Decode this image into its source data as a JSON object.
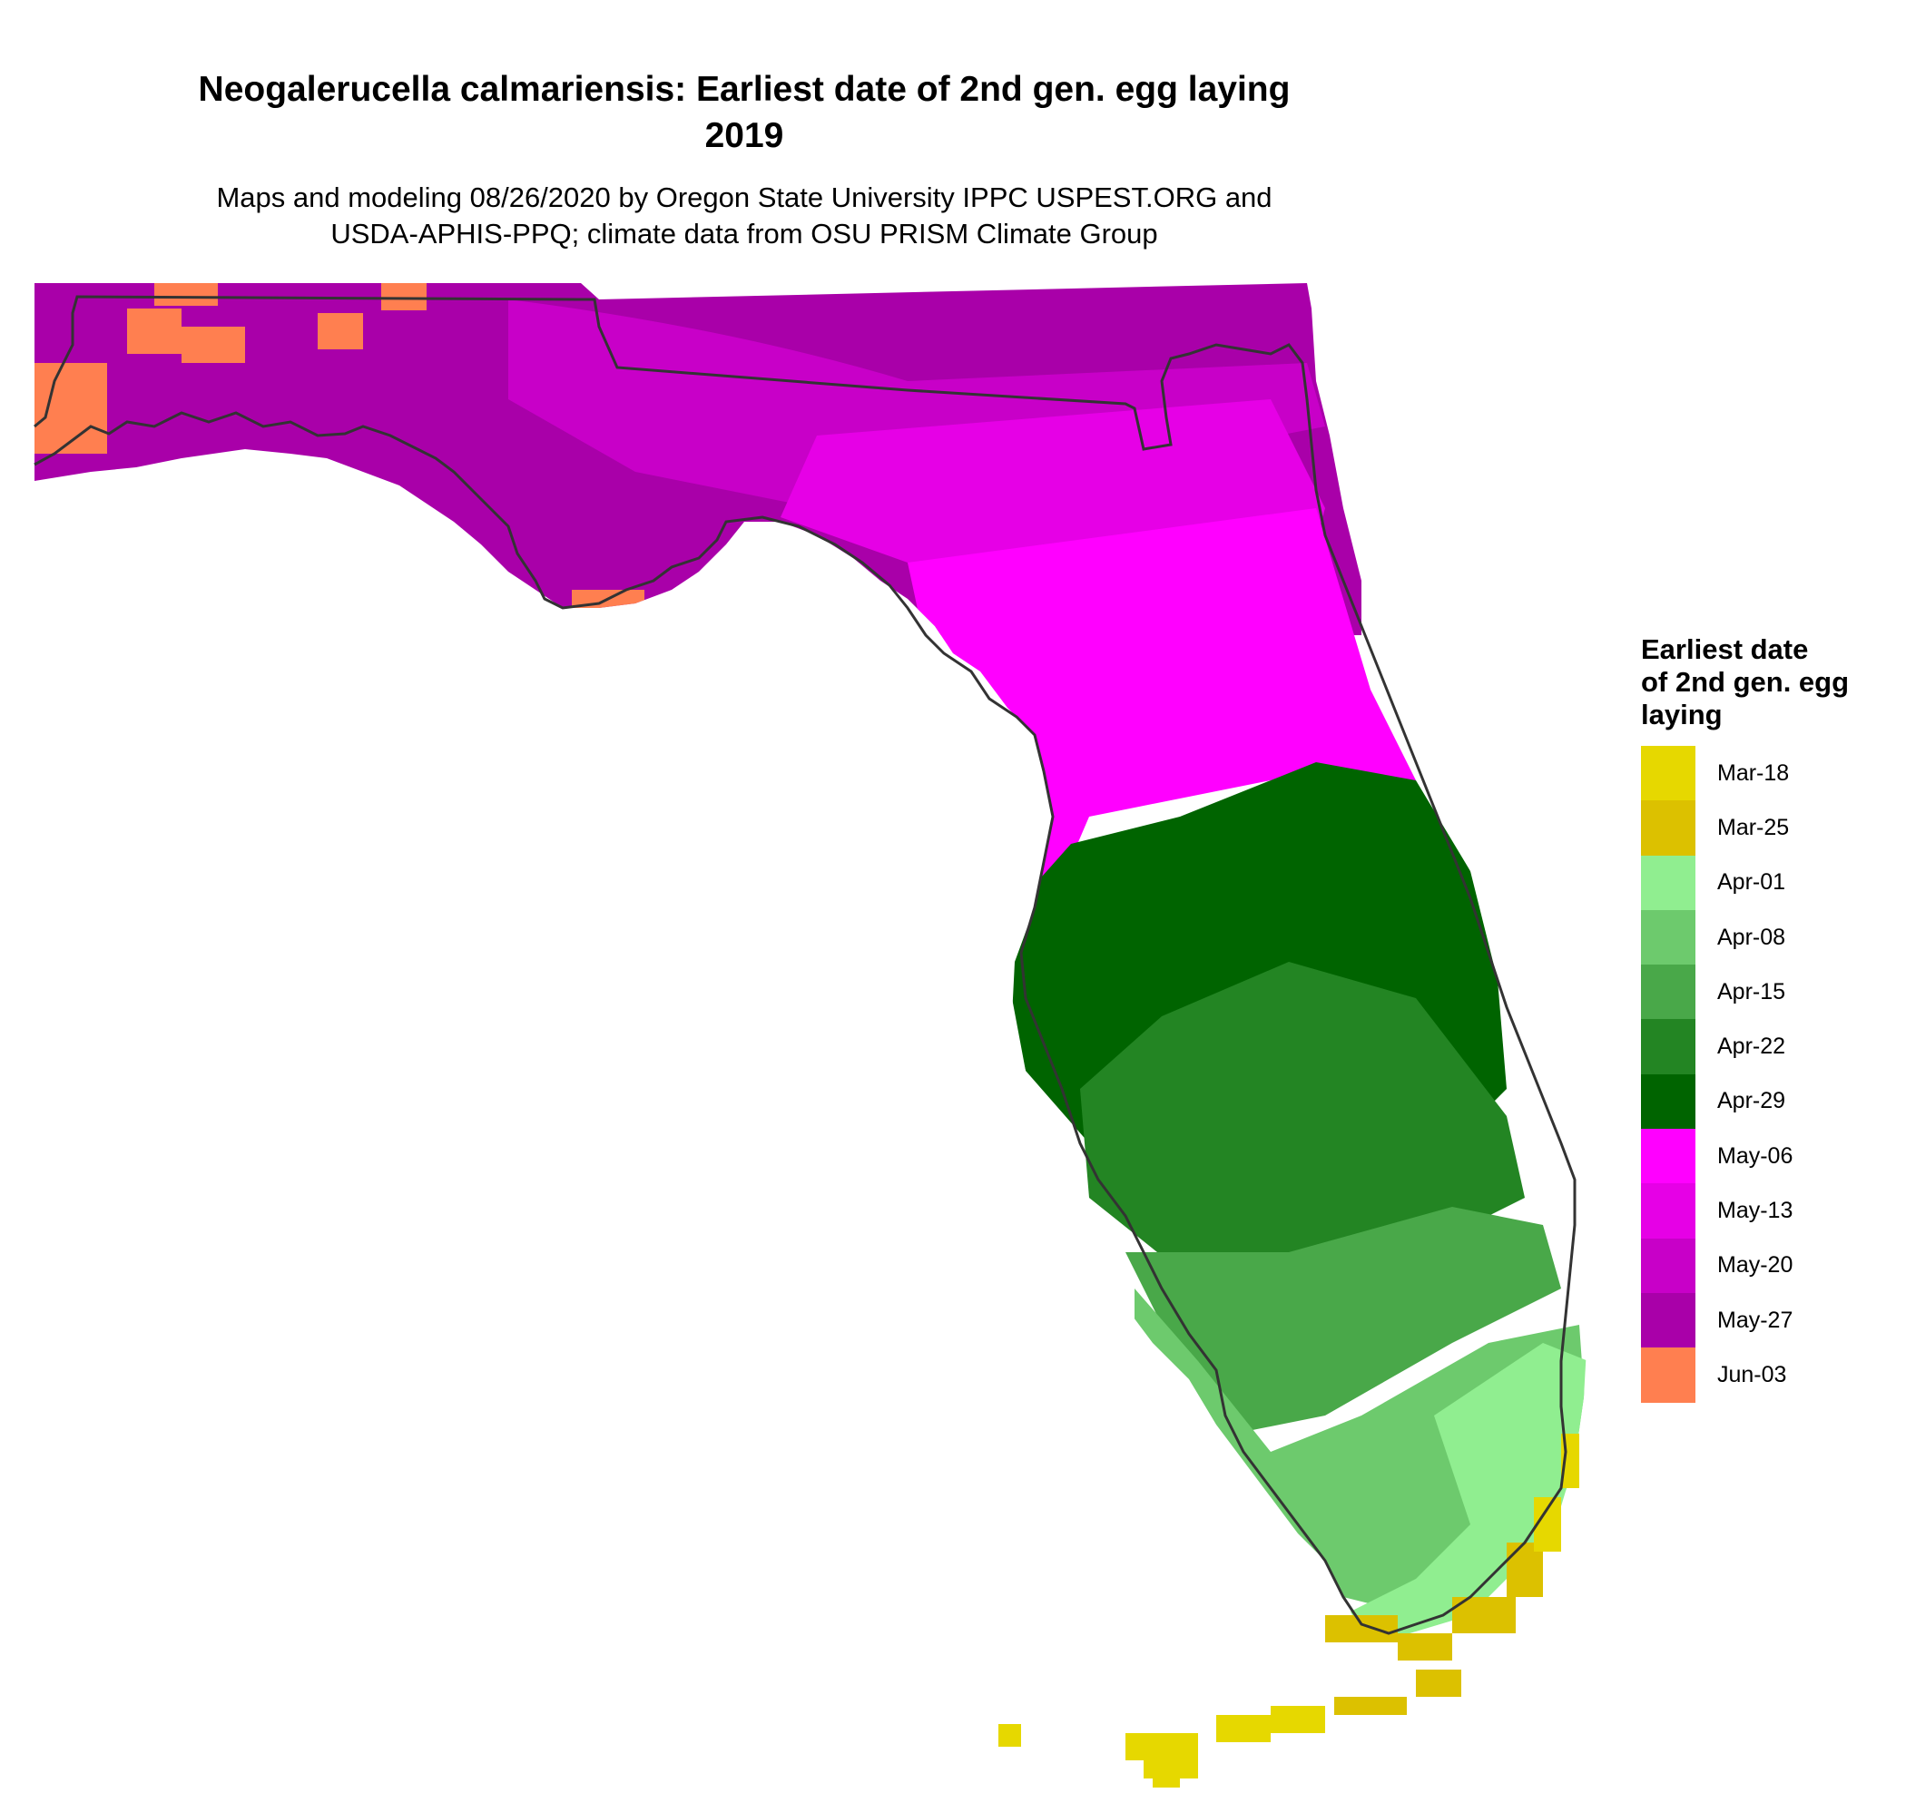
{
  "title": {
    "line1": "Neogalerucella calmariensis: Earliest date of 2nd gen. egg laying",
    "line2": "2019"
  },
  "subtitle": {
    "line1": "Maps and modeling 08/26/2020 by Oregon State University IPPC USPEST.ORG and",
    "line2": "USDA-APHIS-PPQ; climate data from OSU PRISM Climate Group"
  },
  "legend": {
    "title_lines": [
      "Earliest date",
      "of 2nd gen. egg",
      "laying"
    ],
    "items": [
      {
        "label": "Mar-18",
        "color": "#E6D800"
      },
      {
        "label": "Mar-25",
        "color": "#DCC100"
      },
      {
        "label": "Apr-01",
        "color": "#90EE90"
      },
      {
        "label": "Apr-08",
        "color": "#6DCA6D"
      },
      {
        "label": "Apr-15",
        "color": "#49A849"
      },
      {
        "label": "Apr-22",
        "color": "#238523"
      },
      {
        "label": "Apr-29",
        "color": "#006400"
      },
      {
        "label": "May-06",
        "color": "#FF00FF"
      },
      {
        "label": "May-13",
        "color": "#E600E6"
      },
      {
        "label": "May-20",
        "color": "#C800C8"
      },
      {
        "label": "May-27",
        "color": "#A900A9"
      },
      {
        "label": "Jun-03",
        "color": "#FF7F50"
      }
    ]
  },
  "map": {
    "region": "Florida",
    "outline_color": "#333333"
  }
}
